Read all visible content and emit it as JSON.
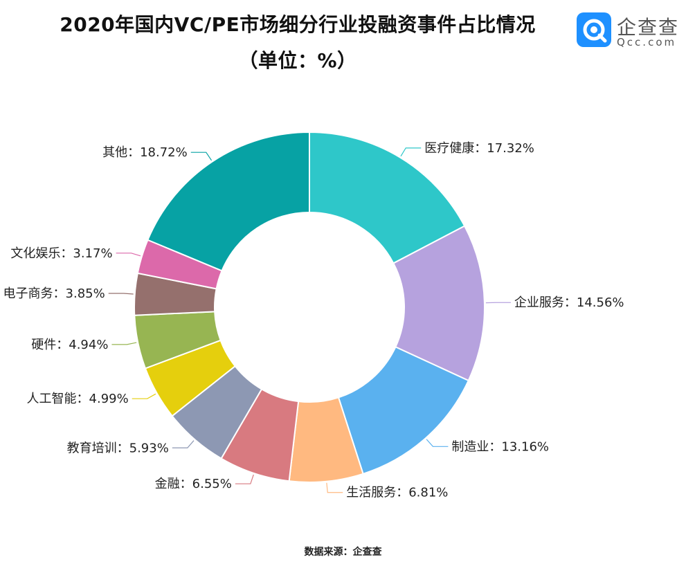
{
  "header": {
    "title_line1": "2020年国内VC/PE市场细分行业投融资事件占比情况",
    "title_line2": "（单位：%）"
  },
  "logo": {
    "name": "企查查",
    "sub": "Qcc.com",
    "color": "#1e90ff"
  },
  "footer": {
    "source": "数据来源：企查查"
  },
  "chart_data": {
    "type": "pie",
    "donut": true,
    "title": "2020年国内VC/PE市场细分行业投融资事件占比情况",
    "subtitle": "（单位：%）",
    "unit": "%",
    "slices": [
      {
        "name": "医疗健康",
        "value": 17.32,
        "color": "#2ec7c9",
        "label": "医疗健康：17.32%"
      },
      {
        "name": "企业服务",
        "value": 14.56,
        "color": "#b6a2de",
        "label": "企业服务：14.56%"
      },
      {
        "name": "制造业",
        "value": 13.16,
        "color": "#5ab1ef",
        "label": "制造业：13.16%"
      },
      {
        "name": "生活服务",
        "value": 6.81,
        "color": "#ffb980",
        "label": "生活服务：6.81%"
      },
      {
        "name": "金融",
        "value": 6.55,
        "color": "#d87a80",
        "label": "金融：6.55%"
      },
      {
        "name": "教育培训",
        "value": 5.93,
        "color": "#8d98b3",
        "label": "教育培训：5.93%"
      },
      {
        "name": "人工智能",
        "value": 4.99,
        "color": "#e5cf0d",
        "label": "人工智能：4.99%"
      },
      {
        "name": "硬件",
        "value": 4.94,
        "color": "#97b552",
        "label": "硬件：4.94%"
      },
      {
        "name": "电子商务",
        "value": 3.85,
        "color": "#95706d",
        "label": "电子商务：3.85%"
      },
      {
        "name": "文化娱乐",
        "value": 3.17,
        "color": "#dc69aa",
        "label": "文化娱乐：3.17%"
      },
      {
        "name": "其他",
        "value": 18.72,
        "color": "#07a2a4",
        "label": "其他：18.72%"
      }
    ]
  }
}
